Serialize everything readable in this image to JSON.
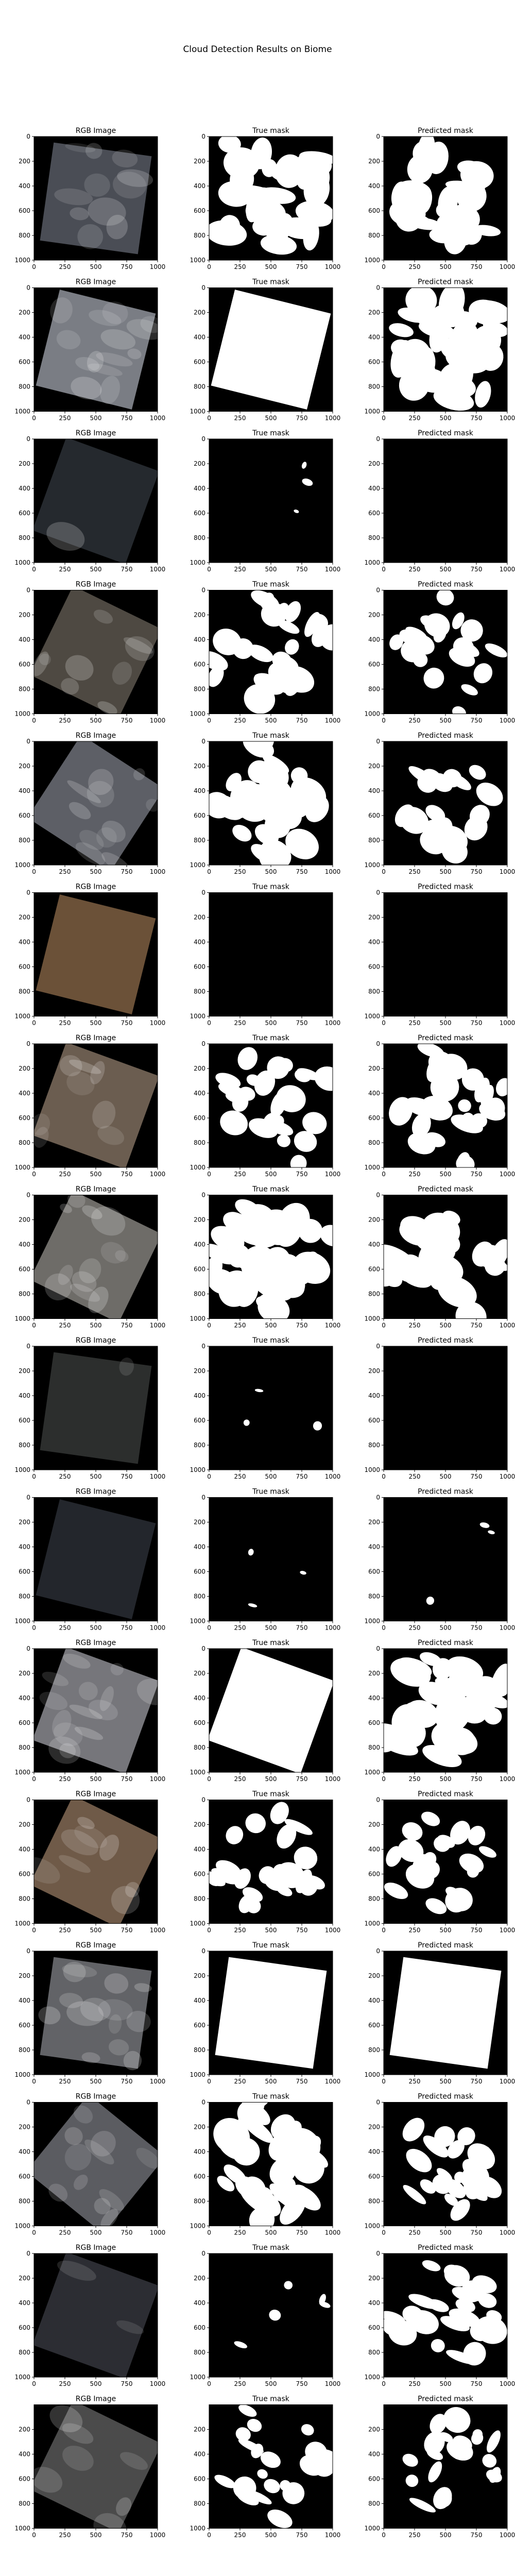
{
  "chart_data": {
    "type": "image-grid",
    "title": "Cloud Detection Results on Biome",
    "column_titles": [
      "RGB Image",
      "True mask",
      "Predicted mask"
    ],
    "rows": 16,
    "x_ticks": [
      0,
      250,
      500,
      750,
      1000
    ],
    "y_ticks_full": [
      0,
      200,
      400,
      600,
      800,
      1000
    ],
    "y_ticks_last": [
      200,
      400,
      600,
      800,
      1000
    ],
    "image_extent": [
      0,
      1000
    ],
    "panels": [
      {
        "rgb": "#4a4d55",
        "true_coverage": 0.82,
        "pred_coverage": 0.72
      },
      {
        "rgb": "#7a7d84",
        "true_coverage": 0.98,
        "pred_coverage": 0.88
      },
      {
        "rgb": "#25292e",
        "true_coverage": 0.05,
        "pred_coverage": 0.0
      },
      {
        "rgb": "#4e4942",
        "true_coverage": 0.62,
        "pred_coverage": 0.5
      },
      {
        "rgb": "#5d5f66",
        "true_coverage": 0.75,
        "pred_coverage": 0.55
      },
      {
        "rgb": "#6b5138",
        "true_coverage": 0.0,
        "pred_coverage": 0.0
      },
      {
        "rgb": "#6b5d50",
        "true_coverage": 0.6,
        "pred_coverage": 0.62
      },
      {
        "rgb": "#6e6c68",
        "true_coverage": 0.85,
        "pred_coverage": 0.8
      },
      {
        "rgb": "#2c2e2d",
        "true_coverage": 0.04,
        "pred_coverage": 0.0
      },
      {
        "rgb": "#23262c",
        "true_coverage": 0.02,
        "pred_coverage": 0.03
      },
      {
        "rgb": "#76767b",
        "true_coverage": 0.98,
        "pred_coverage": 0.82
      },
      {
        "rgb": "#6f5a48",
        "true_coverage": 0.55,
        "pred_coverage": 0.52
      },
      {
        "rgb": "#626367",
        "true_coverage": 0.99,
        "pred_coverage": 0.97
      },
      {
        "rgb": "#5b5c61",
        "true_coverage": 0.8,
        "pred_coverage": 0.55
      },
      {
        "rgb": "#2c2d33",
        "true_coverage": 0.12,
        "pred_coverage": 0.6
      },
      {
        "rgb": "#4b4b4b",
        "true_coverage": 0.5,
        "pred_coverage": 0.5
      }
    ]
  }
}
